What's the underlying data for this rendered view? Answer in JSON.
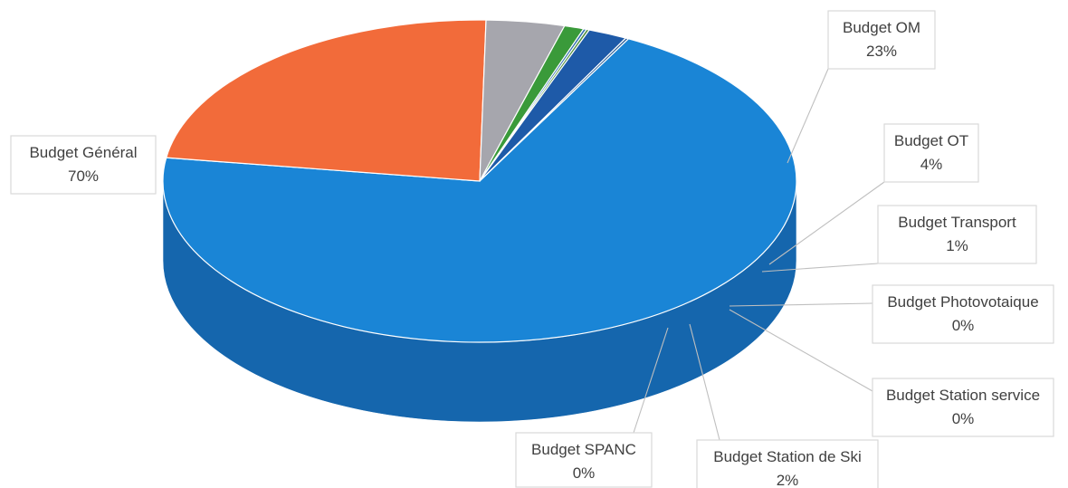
{
  "chart_data": {
    "type": "pie",
    "title": "",
    "slices": [
      {
        "name": "Budget Général",
        "value": 70,
        "label": "70%",
        "color": "#1a85d6",
        "side_color": "#1566ad"
      },
      {
        "name": "Budget OM",
        "value": 23,
        "label": "23%",
        "color": "#f26b3a",
        "side_color": "#3a3a3a"
      },
      {
        "name": "Budget OT",
        "value": 4,
        "label": "4%",
        "color": "#a6a6ad",
        "side_color": "#3a3a3a"
      },
      {
        "name": "Budget Transport",
        "value": 1,
        "label": "1%",
        "color": "#3a9a3a",
        "side_color": "#3a3a3a"
      },
      {
        "name": "Budget Photovotaique",
        "value": 0,
        "label": "0%",
        "color": "#2f6fb0",
        "side_color": "#3a3a3a"
      },
      {
        "name": "Budget Station service",
        "value": 0,
        "label": "0%",
        "color": "#4d8f3e",
        "side_color": "#3a3a3a"
      },
      {
        "name": "Budget Station de Ski",
        "value": 2,
        "label": "2%",
        "color": "#1e5aa8",
        "side_color": "#2a2a2a"
      },
      {
        "name": "Budget SPANC",
        "value": 0,
        "label": "0%",
        "color": "#2d5f99",
        "side_color": "#2a2a2a"
      }
    ]
  }
}
